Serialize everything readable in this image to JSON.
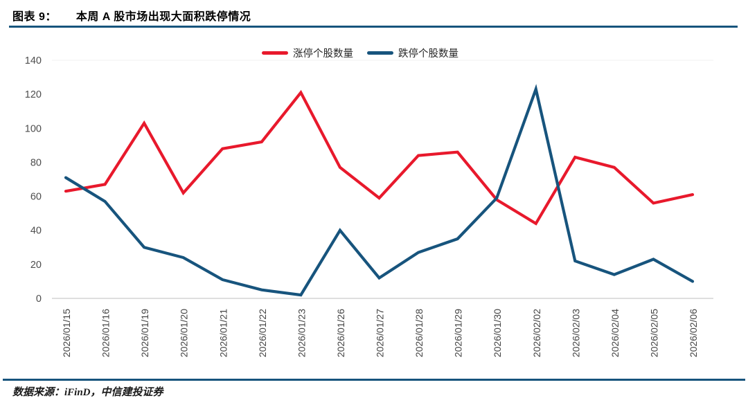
{
  "header": {
    "chart_label": "图表 9：",
    "title": "本周 A 股市场出现大面积跌停情况"
  },
  "footer": {
    "source": "数据来源：iFinD，中信建投证券"
  },
  "colors": {
    "rule": "#17547d",
    "limit_up": "#e8192c",
    "limit_down": "#17547d",
    "axis_line": "#c9c9c9",
    "gridline": "#f1f1f1",
    "y_tick_text": "#4d4d4d",
    "x_tick_text": "#444444"
  },
  "chart_data": {
    "type": "line",
    "title": "本周 A 股市场出现大面积跌停情况",
    "categories": [
      "2026/01/15",
      "2026/01/16",
      "2026/01/19",
      "2026/01/20",
      "2026/01/21",
      "2026/01/22",
      "2026/01/23",
      "2026/01/26",
      "2026/01/27",
      "2026/01/28",
      "2026/01/29",
      "2026/01/30",
      "2026/02/02",
      "2026/02/03",
      "2026/02/04",
      "2026/02/05",
      "2026/02/06"
    ],
    "series": [
      {
        "key": "limit-up",
        "name": "涨停个股数量",
        "color": "#e8192c",
        "values": [
          63,
          67,
          103,
          62,
          88,
          92,
          121,
          77,
          59,
          84,
          86,
          58,
          44,
          83,
          77,
          56,
          61
        ]
      },
      {
        "key": "limit-down",
        "name": "跌停个股数量",
        "color": "#17547d",
        "values": [
          71,
          57,
          30,
          24,
          11,
          5,
          2,
          40,
          12,
          27,
          35,
          59,
          123,
          22,
          14,
          23,
          10
        ]
      }
    ],
    "xlabel": "",
    "ylabel": "",
    "ylim": [
      0,
      140
    ],
    "yticks": [
      0,
      20,
      40,
      60,
      80,
      100,
      120,
      140
    ],
    "legend_position": "top-center",
    "grid": "top-line-only"
  }
}
